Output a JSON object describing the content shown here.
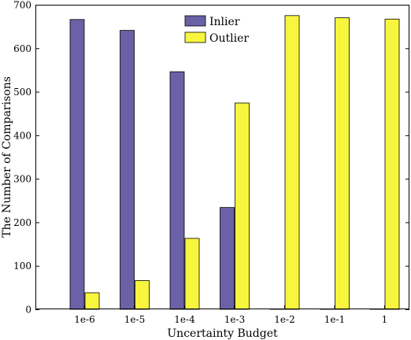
{
  "chart_data": {
    "type": "bar",
    "xlabel": "Uncertainty Budget",
    "ylabel": "The Number of Comparisons",
    "categories": [
      "1e-6",
      "1e-5",
      "1e-4",
      "1e-3",
      "1e-2",
      "1e-1",
      "1"
    ],
    "ylim": [
      0,
      700
    ],
    "yticks": [
      0,
      100,
      200,
      300,
      400,
      500,
      600,
      700
    ],
    "series": [
      {
        "name": "Inlier",
        "color": "#6a61a6",
        "values": [
          666,
          641,
          546,
          234,
          0,
          0,
          0
        ]
      },
      {
        "name": "Outlier",
        "color": "#f8f53f",
        "values": [
          38,
          66,
          163,
          474,
          675,
          670,
          667
        ]
      }
    ],
    "legend_position": "top-center",
    "grid": false,
    "box": true
  }
}
